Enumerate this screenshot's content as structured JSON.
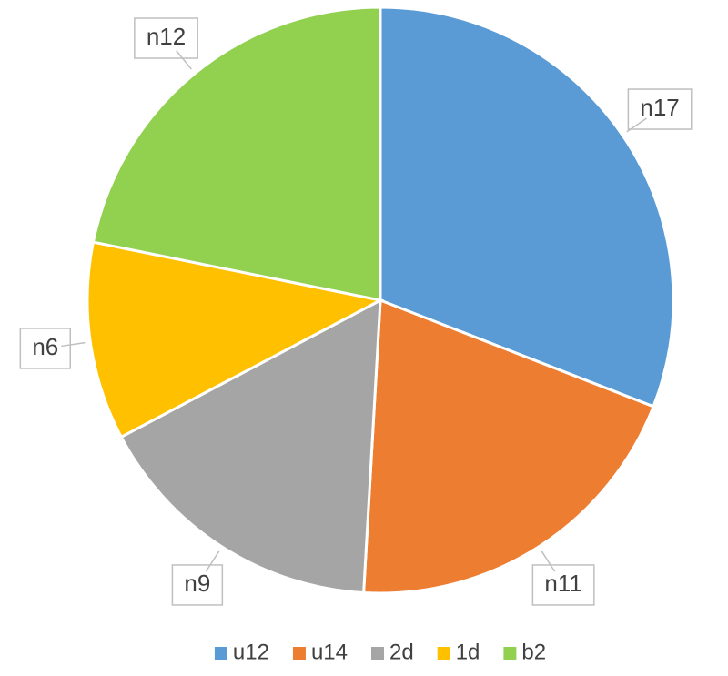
{
  "chart_data": {
    "type": "pie",
    "categories": [
      "u12",
      "u14",
      "2d",
      "1d",
      "b2"
    ],
    "values": [
      17,
      11,
      9,
      6,
      12
    ],
    "value_labels": [
      "n17",
      "n11",
      "n9",
      "n6",
      "n12"
    ],
    "colors": [
      "#5b9bd5",
      "#ed7d31",
      "#a5a5a5",
      "#ffc000",
      "#92d050"
    ],
    "legend": "bottom"
  }
}
